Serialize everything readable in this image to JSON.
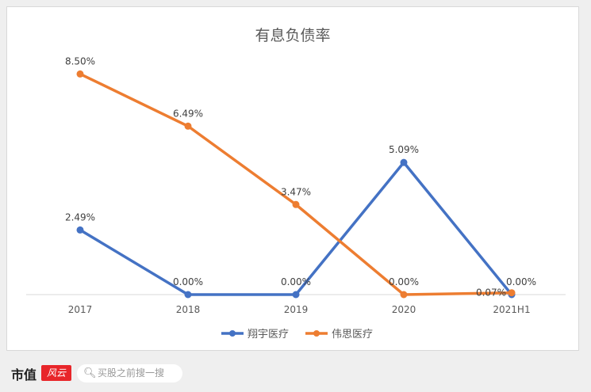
{
  "chart_data": {
    "type": "line",
    "title": "有息负债率",
    "categories": [
      "2017",
      "2018",
      "2019",
      "2020",
      "2021H1"
    ],
    "series": [
      {
        "name": "翔宇医疗",
        "color": "#4472C4",
        "values": [
          2.49,
          0.0,
          0.0,
          5.09,
          0.0
        ],
        "labels": [
          "2.49%",
          "0.00%",
          "0.00%",
          "5.09%",
          "0.00%"
        ]
      },
      {
        "name": "伟思医疗",
        "color": "#ED7D31",
        "values": [
          8.5,
          6.49,
          3.47,
          0.0,
          0.07
        ],
        "labels": [
          "8.50%",
          "6.49%",
          "3.47%",
          "0.00%",
          "0.07%"
        ]
      }
    ],
    "ylim": [
      0,
      9
    ],
    "grid": false,
    "legend": "bottom"
  },
  "footer": {
    "brand": "市值",
    "brand_mark": "风云",
    "search_placeholder": "买股之前搜一搜"
  }
}
